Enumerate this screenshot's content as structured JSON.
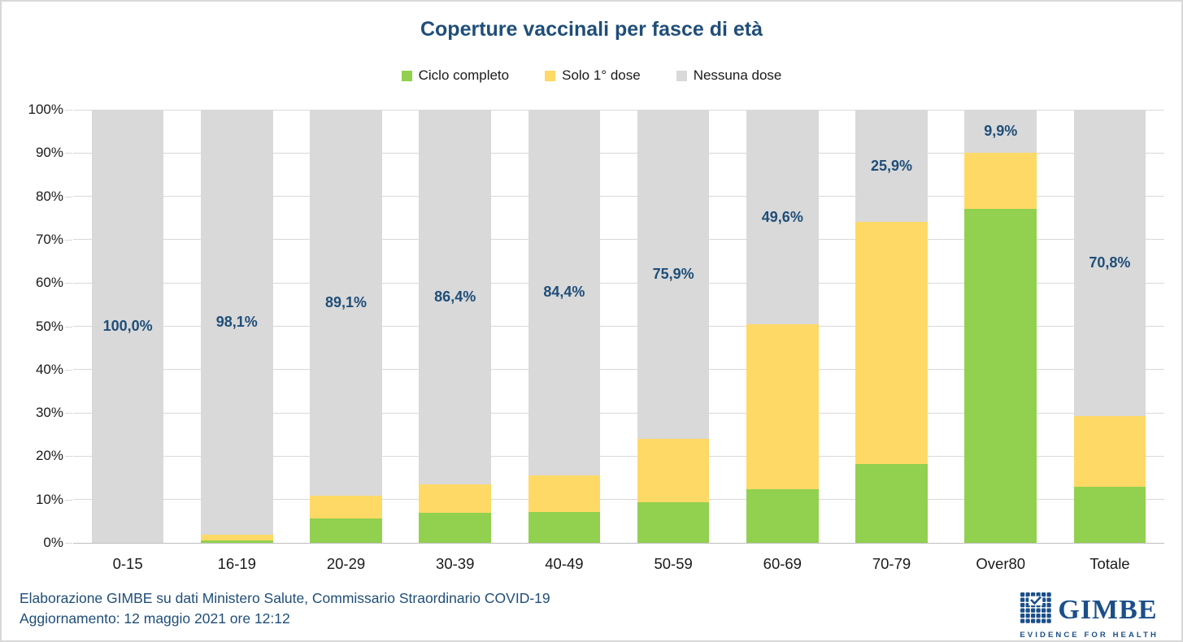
{
  "title": "Coperture vaccinali per fasce di età",
  "legend": [
    {
      "label": "Ciclo completo",
      "color": "#92D050"
    },
    {
      "label": "Solo 1° dose",
      "color": "#FFD966"
    },
    {
      "label": "Nessuna dose",
      "color": "#D9D9D9"
    }
  ],
  "chart_data": {
    "type": "bar",
    "stacked": true,
    "title": "Coperture vaccinali per fasce di età",
    "categories": [
      "0-15",
      "16-19",
      "20-29",
      "30-39",
      "40-49",
      "50-59",
      "60-69",
      "70-79",
      "Over80",
      "Totale"
    ],
    "series": [
      {
        "name": "Ciclo completo",
        "color": "#92D050",
        "values": [
          0,
          0.5,
          5.6,
          6.9,
          7.2,
          9.4,
          12.3,
          18.2,
          77.2,
          13.0
        ]
      },
      {
        "name": "Solo 1° dose",
        "color": "#FFD966",
        "values": [
          0,
          1.4,
          5.3,
          6.7,
          8.4,
          14.7,
          38.1,
          55.9,
          12.9,
          16.2
        ]
      },
      {
        "name": "Nessuna dose",
        "color": "#D9D9D9",
        "values": [
          100.0,
          98.1,
          89.1,
          86.4,
          84.4,
          75.9,
          49.6,
          25.9,
          9.9,
          70.8
        ]
      }
    ],
    "data_labels": [
      "100,0%",
      "98,1%",
      "89,1%",
      "86,4%",
      "84,4%",
      "75,9%",
      "49,6%",
      "25,9%",
      "9,9%",
      "70,8%"
    ],
    "data_label_series": "Nessuna dose",
    "y_ticks": [
      "100%",
      "90%",
      "80%",
      "70%",
      "60%",
      "50%",
      "40%",
      "30%",
      "20%",
      "10%",
      "0%"
    ],
    "ylim": [
      0,
      100
    ],
    "grid": true,
    "legend_position": "top"
  },
  "footer": {
    "line1": "Elaborazione GIMBE su dati Ministero Salute, Commissario Straordinario COVID-19",
    "line2": "Aggiornamento: 12 maggio 2021 ore 12:12"
  },
  "logo": {
    "name": "GIMBE",
    "tagline": "EVIDENCE FOR HEALTH"
  },
  "colors": {
    "title": "#1F4E79",
    "data_label": "#1F4E79",
    "footer": "#1F4E79",
    "logo": "#1B4F8A",
    "grid": "#D9D9D9",
    "axis": "#BFBFBF"
  }
}
